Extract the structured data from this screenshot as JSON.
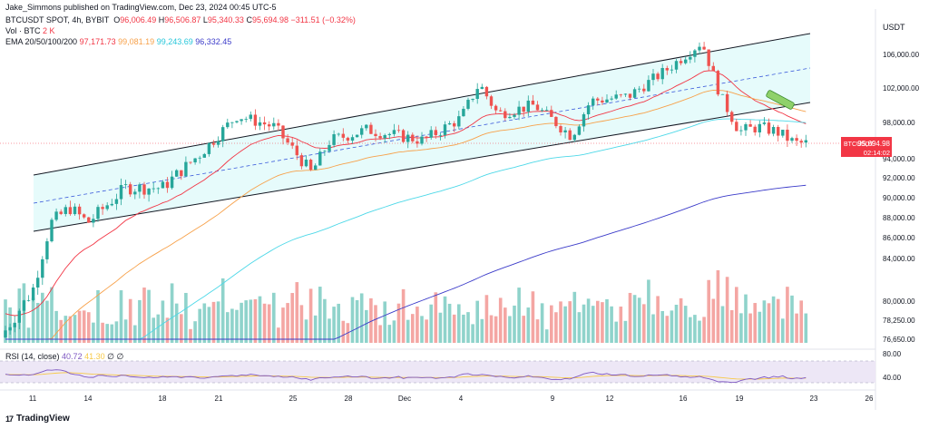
{
  "header": {
    "author_line": "Jake_Simmons published on TradingView.com, Dec 23, 2024 00:45 UTC-5",
    "symbol": "BTCUSDT SPOT, 4h, BYBIT",
    "ohlc": {
      "o_label": "O",
      "o": "96,006.49",
      "h_label": "H",
      "h": "96,506.87",
      "l_label": "L",
      "l": "95,340.33",
      "c_label": "C",
      "c": "95,694.98",
      "change": "−311.51 (−0.32%)"
    },
    "vol_label": "Vol · BTC",
    "vol_value": "2 K",
    "ema_label": "EMA 20/50/100/200",
    "ema_values": [
      "97,171.73",
      "99,081.19",
      "99,243.69",
      "96,332.45"
    ],
    "rsi_label": "RSI (14, close)",
    "rsi_values": [
      "40.72",
      "41.30",
      "∅",
      "∅"
    ]
  },
  "branding": {
    "logo_text": "TradingView",
    "logo_mark": "17"
  },
  "axis": {
    "currency": "USDT",
    "price_tag_symbol": "BTCUSDT",
    "price_tag_value": "95,694.98",
    "price_tag_timer": "02:14:02"
  },
  "colors": {
    "up": "#26a69a",
    "down": "#ef5350",
    "ema20": "#f23645",
    "ema50": "#f7a14a",
    "ema100": "#4dd8e8",
    "ema200": "#3b3bc9",
    "channel_fill": "#e6fbfb",
    "rsi_line": "#7e57c2"
  },
  "chart_data": {
    "type": "candlestick",
    "title": "BTCUSDT SPOT, 4h, BYBIT",
    "y_ticks": [
      "106,000.00",
      "102,000.00",
      "98,000.00",
      "94,000.00",
      "92,000.00",
      "90,000.00",
      "88,000.00",
      "86,000.00",
      "84,000.00",
      "80,000.00",
      "78,250.00",
      "76,650.00"
    ],
    "x_ticks": [
      "11",
      "14",
      "18",
      "21",
      "25",
      "28",
      "Dec",
      "4",
      "9",
      "12",
      "16",
      "19",
      "23",
      "26"
    ],
    "rsi_ticks": [
      "80.00",
      "40.00"
    ],
    "approx_close_path": [
      {
        "date": "Nov 11",
        "price": 81000
      },
      {
        "date": "Nov 12",
        "price": 87500
      },
      {
        "date": "Nov 13",
        "price": 89000
      },
      {
        "date": "Nov 14",
        "price": 87500
      },
      {
        "date": "Nov 16",
        "price": 91000
      },
      {
        "date": "Nov 18",
        "price": 91000
      },
      {
        "date": "Nov 20",
        "price": 94500
      },
      {
        "date": "Nov 22",
        "price": 98800
      },
      {
        "date": "Nov 24",
        "price": 97500
      },
      {
        "date": "Nov 26",
        "price": 92500
      },
      {
        "date": "Nov 27",
        "price": 96000
      },
      {
        "date": "Nov 29",
        "price": 97200
      },
      {
        "date": "Dec 2",
        "price": 96000
      },
      {
        "date": "Dec 4",
        "price": 98500
      },
      {
        "date": "Dec 5",
        "price": 102500
      },
      {
        "date": "Dec 6",
        "price": 99000
      },
      {
        "date": "Dec 8",
        "price": 100000
      },
      {
        "date": "Dec 10",
        "price": 96500
      },
      {
        "date": "Dec 11",
        "price": 100500
      },
      {
        "date": "Dec 13",
        "price": 101000
      },
      {
        "date": "Dec 15",
        "price": 104000
      },
      {
        "date": "Dec 17",
        "price": 107500
      },
      {
        "date": "Dec 18",
        "price": 101000
      },
      {
        "date": "Dec 19",
        "price": 97000
      },
      {
        "date": "Dec 20",
        "price": 97500
      },
      {
        "date": "Dec 21",
        "price": 97000
      },
      {
        "date": "Dec 22",
        "price": 95695
      }
    ],
    "last_price": 95694.98
  }
}
